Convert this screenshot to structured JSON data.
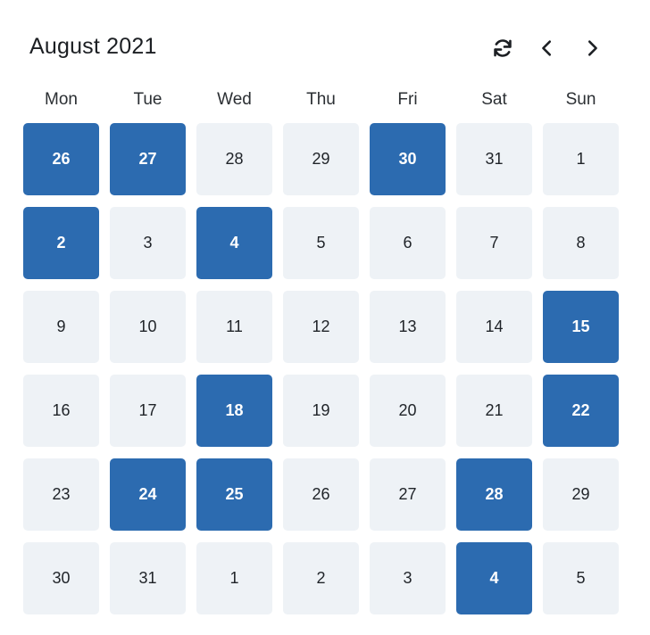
{
  "header": {
    "title": "August 2021",
    "refresh_icon": "refresh-icon",
    "prev_icon": "chevron-left-icon",
    "next_icon": "chevron-right-icon"
  },
  "colors": {
    "accent": "#2c6bb0",
    "cell_bg": "#eef2f6",
    "text": "#1f2328"
  },
  "weekdays": [
    "Mon",
    "Tue",
    "Wed",
    "Thu",
    "Fri",
    "Sat",
    "Sun"
  ],
  "days": [
    {
      "label": "26",
      "active": true
    },
    {
      "label": "27",
      "active": true
    },
    {
      "label": "28",
      "active": false
    },
    {
      "label": "29",
      "active": false
    },
    {
      "label": "30",
      "active": true
    },
    {
      "label": "31",
      "active": false
    },
    {
      "label": "1",
      "active": false
    },
    {
      "label": "2",
      "active": true
    },
    {
      "label": "3",
      "active": false
    },
    {
      "label": "4",
      "active": true
    },
    {
      "label": "5",
      "active": false
    },
    {
      "label": "6",
      "active": false
    },
    {
      "label": "7",
      "active": false
    },
    {
      "label": "8",
      "active": false
    },
    {
      "label": "9",
      "active": false
    },
    {
      "label": "10",
      "active": false
    },
    {
      "label": "11",
      "active": false
    },
    {
      "label": "12",
      "active": false
    },
    {
      "label": "13",
      "active": false
    },
    {
      "label": "14",
      "active": false
    },
    {
      "label": "15",
      "active": true
    },
    {
      "label": "16",
      "active": false
    },
    {
      "label": "17",
      "active": false
    },
    {
      "label": "18",
      "active": true
    },
    {
      "label": "19",
      "active": false
    },
    {
      "label": "20",
      "active": false
    },
    {
      "label": "21",
      "active": false
    },
    {
      "label": "22",
      "active": true
    },
    {
      "label": "23",
      "active": false
    },
    {
      "label": "24",
      "active": true
    },
    {
      "label": "25",
      "active": true
    },
    {
      "label": "26",
      "active": false
    },
    {
      "label": "27",
      "active": false
    },
    {
      "label": "28",
      "active": true
    },
    {
      "label": "29",
      "active": false
    },
    {
      "label": "30",
      "active": false
    },
    {
      "label": "31",
      "active": false
    },
    {
      "label": "1",
      "active": false
    },
    {
      "label": "2",
      "active": false
    },
    {
      "label": "3",
      "active": false
    },
    {
      "label": "4",
      "active": true
    },
    {
      "label": "5",
      "active": false
    }
  ]
}
